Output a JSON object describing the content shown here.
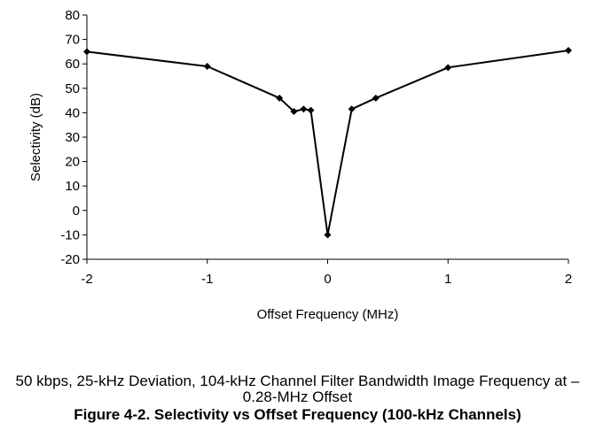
{
  "chart_data": {
    "type": "line",
    "xlabel": "Offset Frequency (MHz)",
    "ylabel": "Selectivity (dB)",
    "xlim": [
      -2,
      2
    ],
    "ylim": [
      -20,
      80
    ],
    "x_ticks": [
      "-2",
      "-1",
      "0",
      "1",
      "2"
    ],
    "y_ticks": [
      "80",
      "70",
      "60",
      "50",
      "40",
      "30",
      "20",
      "10",
      "0",
      "-10",
      "-20"
    ],
    "grid": false,
    "legend": "none",
    "marker": "diamond",
    "line_color": "#000000",
    "series": [
      {
        "x": [
          -2,
          -1,
          -0.4,
          -0.28,
          -0.2,
          -0.14,
          0,
          0.2,
          0.4,
          1,
          2
        ],
        "y": [
          65,
          59,
          46,
          40.5,
          41.5,
          41,
          -10,
          41.5,
          46,
          58.5,
          65.5
        ]
      }
    ]
  },
  "caption": {
    "subtitle": "50 kbps, 25-kHz Deviation, 104-kHz Channel Filter Bandwidth Image Frequency at –0.28-MHz Offset",
    "figure": "Figure 4-2. Selectivity vs Offset Frequency (100-kHz Channels)"
  }
}
